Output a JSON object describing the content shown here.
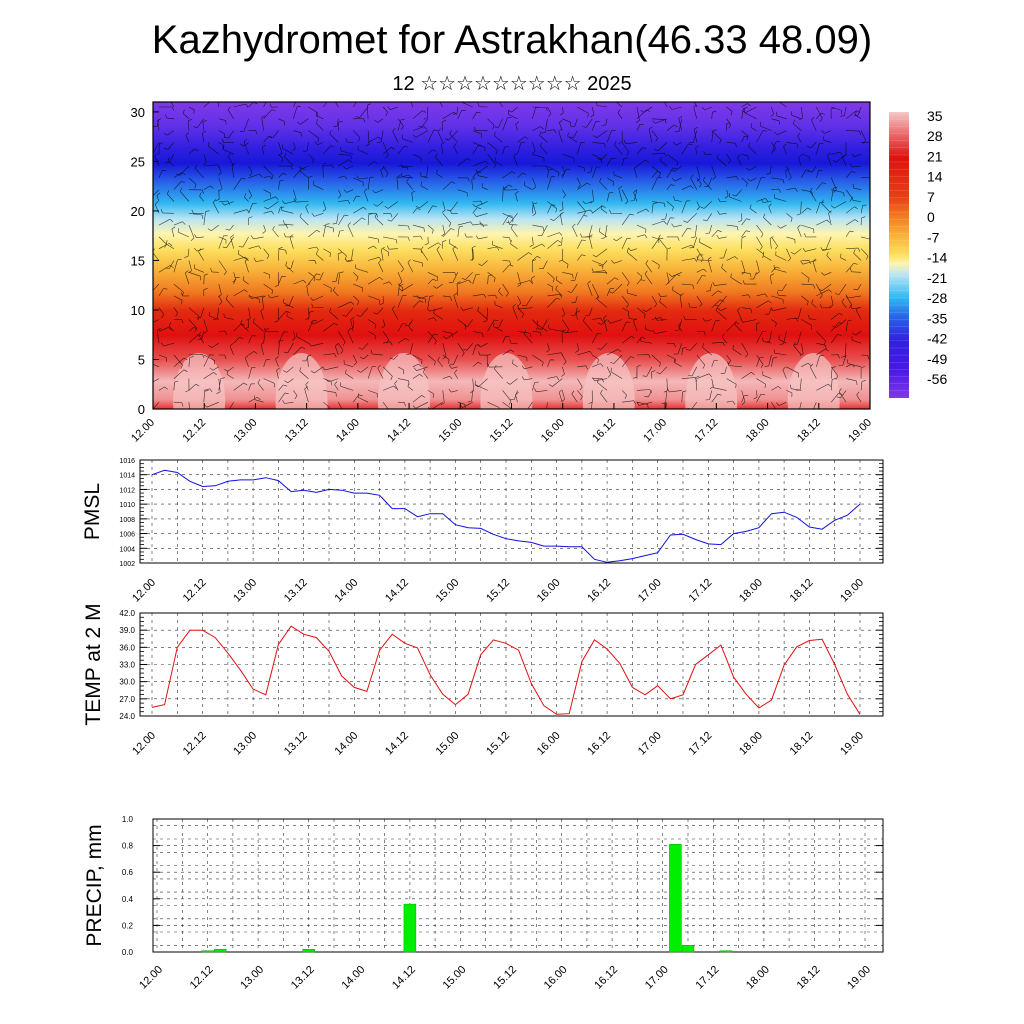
{
  "title": "Kazhydromet for Astrakhan(46.33 48.09)",
  "subtitle": "12 ☆☆☆☆☆☆☆☆☆ 2025",
  "colors": {
    "pmsl_line": "#1010e0",
    "temp_line": "#e01010",
    "precip_bar": "#00ee00"
  },
  "chart_data": [
    {
      "type": "heatmap",
      "name": "cross-section",
      "y_ticks": [
        "0",
        "5",
        "10",
        "15",
        "20",
        "25",
        "30"
      ],
      "ylim": [
        0,
        31
      ],
      "x_ticks": [
        "12.00",
        "12.12",
        "13.00",
        "13.12",
        "14.00",
        "14.12",
        "15.00",
        "15.12",
        "16.00",
        "16.12",
        "17.00",
        "17.12",
        "18.00",
        "18.12",
        "19.00"
      ],
      "colorbar_labels": [
        "35",
        "28",
        "21",
        "14",
        "7",
        "0",
        "-7",
        "-14",
        "-21",
        "-28",
        "-35",
        "-42",
        "-49",
        "-56"
      ],
      "colorbar_colors": [
        "#f4c8c8",
        "#e86868",
        "#e01010",
        "#e84018",
        "#f07820",
        "#f8b038",
        "#fce060",
        "#fff4b0",
        "#b8e4f4",
        "#30b8f0",
        "#2860e8",
        "#3020e0",
        "#4818e8",
        "#8038e8"
      ],
      "wind_barbs": true
    },
    {
      "type": "line",
      "ylabel": "PMSL",
      "ylim": [
        1002,
        1016
      ],
      "y_ticks": [
        "1002",
        "1004",
        "1006",
        "1008",
        "1010",
        "1012",
        "1014",
        "1016"
      ],
      "x_ticks": [
        "12.00",
        "12.12",
        "13.00",
        "13.12",
        "14.00",
        "14.12",
        "15.00",
        "15.12",
        "16.00",
        "16.12",
        "17.00",
        "17.12",
        "18.00",
        "18.12",
        "19.00"
      ],
      "values": [
        1014,
        1014.6,
        1014.3,
        1013.1,
        1012.4,
        1012.5,
        1013.1,
        1013.3,
        1013.3,
        1013.6,
        1013.2,
        1011.7,
        1011.9,
        1011.6,
        1012,
        1011.9,
        1011.5,
        1011.5,
        1011.2,
        1009.4,
        1009.4,
        1008.3,
        1008.7,
        1008.7,
        1007.2,
        1006.8,
        1006.7,
        1005.9,
        1005.3,
        1005,
        1004.8,
        1004.3,
        1004.3,
        1004.2,
        1004.2,
        1002.5,
        1002.1,
        1002.3,
        1002.6,
        1003,
        1003.4,
        1005.8,
        1005.9,
        1005.2,
        1004.6,
        1004.5,
        1006,
        1006.3,
        1006.8,
        1008.7,
        1008.9,
        1008.2,
        1006.9,
        1006.6,
        1007.8,
        1008.5,
        1010
      ]
    },
    {
      "type": "line",
      "ylabel": "TEMP at 2 M",
      "ylim": [
        24,
        42
      ],
      "y_ticks": [
        "24.0",
        "27.0",
        "30.0",
        "33.0",
        "36.0",
        "39.0",
        "42.0"
      ],
      "x_ticks": [
        "12.00",
        "12.12",
        "13.00",
        "13.12",
        "14.00",
        "14.12",
        "15.00",
        "15.12",
        "16.00",
        "16.12",
        "17.00",
        "17.12",
        "18.00",
        "18.12",
        "19.00"
      ],
      "values": [
        25.5,
        26,
        36,
        39,
        39,
        37.7,
        35,
        32,
        28.7,
        27.7,
        36.5,
        39.7,
        38.3,
        37.7,
        35.3,
        31,
        29,
        28.3,
        35.5,
        38.3,
        36.7,
        35.9,
        31.2,
        27.8,
        26,
        27.8,
        34.7,
        37.3,
        36.7,
        35.5,
        29.7,
        25.8,
        24.3,
        24.4,
        33.5,
        37.3,
        35.7,
        33.2,
        29,
        27.7,
        29.3,
        27,
        27.7,
        33,
        34.7,
        36.4,
        30.8,
        27.8,
        25.4,
        26.8,
        32.9,
        36.1,
        37.2,
        37.4,
        33,
        27.8,
        24.3
      ]
    },
    {
      "type": "bar",
      "ylabel": "PRECIP, mm",
      "ylim": [
        0,
        1.0
      ],
      "y_ticks": [
        "0.0",
        "0.2",
        "0.4",
        "0.6",
        "0.8",
        "1.0"
      ],
      "x_ticks": [
        "12.00",
        "12.12",
        "13.00",
        "13.12",
        "14.00",
        "14.12",
        "15.00",
        "15.12",
        "16.00",
        "16.12",
        "17.00",
        "17.12",
        "18.00",
        "18.12",
        "19.00"
      ],
      "bars": [
        {
          "t": 4,
          "value": 0.01
        },
        {
          "t": 5,
          "value": 0.02
        },
        {
          "t": 12,
          "value": 0.02
        },
        {
          "t": 20,
          "value": 0.36
        },
        {
          "t": 41,
          "value": 0.81
        },
        {
          "t": 42,
          "value": 0.05
        },
        {
          "t": 45,
          "value": 0.01
        }
      ]
    }
  ]
}
